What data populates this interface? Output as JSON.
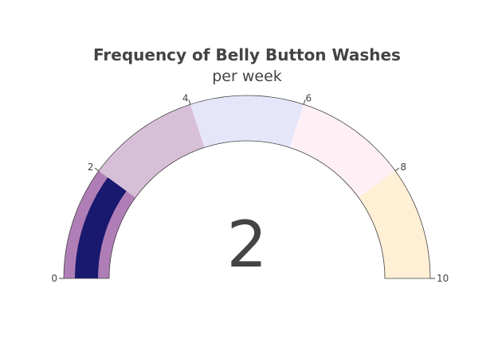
{
  "chart": {
    "title": "Frequency of Belly Button Washes",
    "subtitle": "per week"
  },
  "chart_data": {
    "type": "gauge",
    "title": "Frequency of Belly Button Washes",
    "subtitle": "per week",
    "value": 2,
    "value_label": "2",
    "range": [
      0,
      10
    ],
    "ticks": [
      {
        "value": 0,
        "label": "0"
      },
      {
        "value": 2,
        "label": "2"
      },
      {
        "value": 4,
        "label": "4"
      },
      {
        "value": 6,
        "label": "6"
      },
      {
        "value": 8,
        "label": "8"
      },
      {
        "value": 10,
        "label": "10"
      }
    ],
    "steps": [
      {
        "range": [
          0,
          2
        ],
        "color": "#b07eb6"
      },
      {
        "range": [
          2,
          4
        ],
        "color": "#d8bfd8"
      },
      {
        "range": [
          4,
          6
        ],
        "color": "#e6e6fa"
      },
      {
        "range": [
          6,
          8
        ],
        "color": "#fff0f5"
      },
      {
        "range": [
          8,
          10
        ],
        "color": "#ffefd5"
      }
    ],
    "bar_color": "#191970",
    "outline_color": "#444444"
  }
}
